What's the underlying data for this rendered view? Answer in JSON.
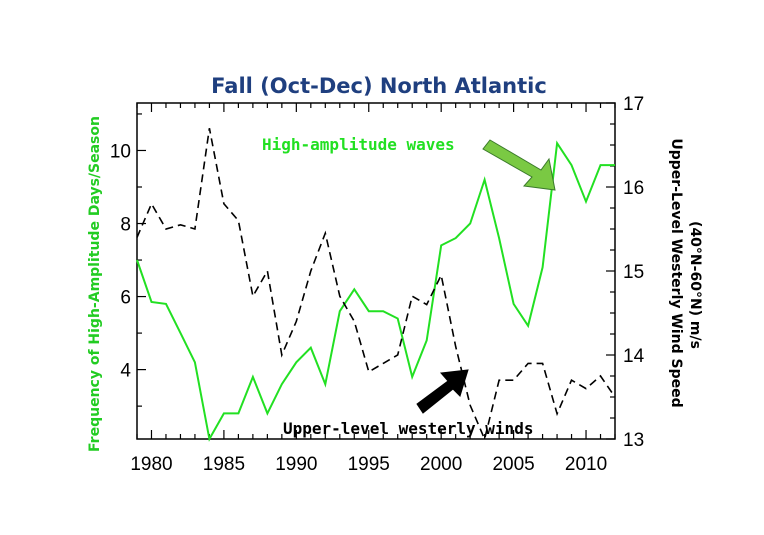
{
  "chart_data": {
    "type": "line",
    "title": "Fall (Oct-Dec) North Atlantic",
    "ylabel_left": "Frequency of High-Amplitude Days/Season",
    "ylabel_right_line1": "Upper-Level Westerly Wind Speed",
    "ylabel_right_line2": "(40°N-60°N) m/s",
    "xlim": [
      1979,
      2012
    ],
    "ylim_left": [
      2.1,
      11.3
    ],
    "ylim_right": [
      13,
      17
    ],
    "x_ticks": [
      1980,
      1985,
      1990,
      1995,
      2000,
      2005,
      2010
    ],
    "x_tick_labels": [
      "1980",
      "1985",
      "1990",
      "1995",
      "2000",
      "2005",
      "2010"
    ],
    "y_left_ticks": [
      4,
      6,
      8,
      10
    ],
    "y_left_tick_labels": [
      "4",
      "6",
      "8",
      "10"
    ],
    "y_right_ticks": [
      13,
      14,
      15,
      16,
      17
    ],
    "y_right_tick_labels": [
      "13",
      "14",
      "15",
      "16",
      "17"
    ],
    "series": [
      {
        "name": "High-amplitude waves",
        "axis": "left",
        "color": "#22e022",
        "style": "solid",
        "x": [
          1979,
          1980,
          1981,
          1982,
          1983,
          1984,
          1985,
          1986,
          1987,
          1988,
          1989,
          1990,
          1991,
          1992,
          1993,
          1994,
          1995,
          1996,
          1997,
          1998,
          1999,
          2000,
          2001,
          2002,
          2003,
          2004,
          2005,
          2006,
          2007,
          2008,
          2009,
          2010,
          2011,
          2012
        ],
        "y": [
          7.0,
          5.85,
          5.8,
          5.0,
          4.2,
          2.1,
          2.8,
          2.8,
          3.8,
          2.8,
          3.6,
          4.2,
          4.6,
          3.6,
          5.6,
          6.2,
          5.6,
          5.6,
          5.4,
          3.8,
          4.8,
          7.4,
          7.6,
          8.0,
          9.2,
          7.6,
          5.8,
          5.2,
          6.8,
          10.2,
          9.6,
          8.6,
          9.6,
          9.6
        ]
      },
      {
        "name": "Upper-level westerly winds",
        "axis": "right",
        "color": "#000000",
        "style": "dashed",
        "x": [
          1979,
          1980,
          1981,
          1982,
          1983,
          1984,
          1985,
          1986,
          1987,
          1988,
          1989,
          1990,
          1991,
          1992,
          1993,
          1994,
          1995,
          1996,
          1997,
          1998,
          1999,
          2000,
          2001,
          2002,
          2003,
          2004,
          2005,
          2006,
          2007,
          2008,
          2009,
          2010,
          2011,
          2012
        ],
        "y": [
          15.4,
          15.8,
          15.5,
          15.55,
          15.5,
          16.7,
          15.8,
          15.6,
          14.7,
          15.0,
          14.0,
          14.4,
          15.0,
          15.45,
          14.7,
          14.4,
          13.8,
          13.9,
          14.0,
          14.7,
          14.6,
          14.95,
          14.1,
          13.4,
          13.0,
          13.7,
          13.7,
          13.9,
          13.9,
          13.3,
          13.7,
          13.6,
          13.75,
          13.5
        ]
      }
    ],
    "annotations": [
      {
        "text": "High-amplitude waves",
        "color": "#22e022",
        "arrow_color": "#7ac943",
        "points_to": [
          2008,
          10.2
        ]
      },
      {
        "text": "Upper-level westerly winds",
        "color": "#000000",
        "arrow_color": "#000000",
        "points_to": [
          2002,
          13.9
        ]
      }
    ],
    "title_color": "#1f3f7f",
    "left_label_color": "#22cc22",
    "right_label_color": "#000000",
    "grid": false
  }
}
